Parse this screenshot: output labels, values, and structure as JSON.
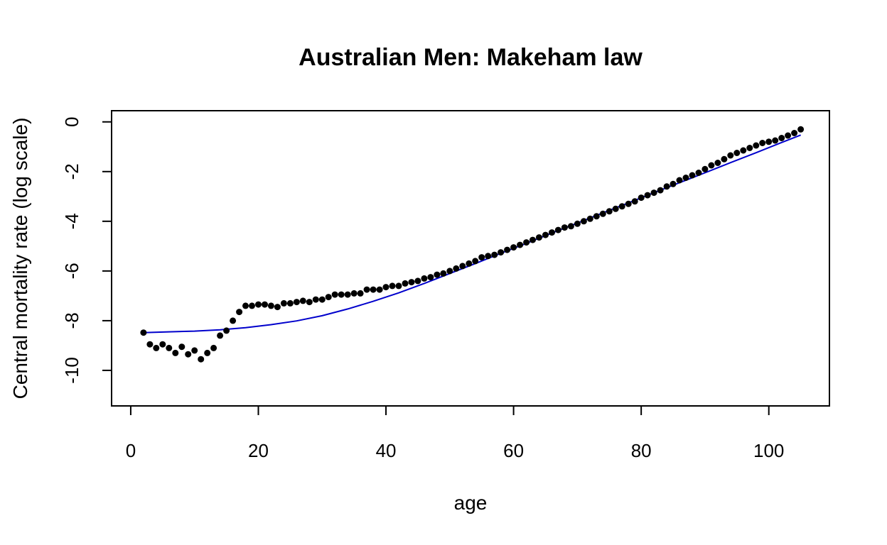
{
  "chart_data": {
    "type": "scatter",
    "title": "Australian Men: Makeham law",
    "xlabel": "age",
    "ylabel": "Central mortality rate (log scale)",
    "xlim": [
      -3.0,
      109.5
    ],
    "ylim": [
      -11.43,
      0.45
    ],
    "xticks": [
      0,
      20,
      40,
      60,
      80,
      100
    ],
    "yticks": [
      0,
      -2,
      -4,
      -6,
      -8,
      -10
    ],
    "grid": false,
    "colors": {
      "points": "#000000",
      "fit_line": "#0000cc"
    },
    "series": [
      {
        "kind": "points",
        "x": [
          2,
          3,
          4,
          5,
          6,
          7,
          8,
          9,
          10,
          11,
          12,
          13,
          14,
          15,
          16,
          17,
          18,
          19,
          20,
          21,
          22,
          23,
          24,
          25,
          26,
          27,
          28,
          29,
          30,
          31,
          32,
          33,
          34,
          35,
          36,
          37,
          38,
          39,
          40,
          41,
          42,
          43,
          44,
          45,
          46,
          47,
          48,
          49,
          50,
          51,
          52,
          53,
          54,
          55,
          56,
          57,
          58,
          59,
          60,
          61,
          62,
          63,
          64,
          65,
          66,
          67,
          68,
          69,
          70,
          71,
          72,
          73,
          74,
          75,
          76,
          77,
          78,
          79,
          80,
          81,
          82,
          83,
          84,
          85,
          86,
          87,
          88,
          89,
          90,
          91,
          92,
          93,
          94,
          95,
          96,
          97,
          98,
          99,
          100,
          101,
          102,
          103,
          104,
          105
        ],
        "y": [
          -8.48,
          -8.95,
          -9.1,
          -8.95,
          -9.1,
          -9.3,
          -9.05,
          -9.35,
          -9.2,
          -9.55,
          -9.3,
          -9.1,
          -8.6,
          -8.4,
          -8.0,
          -7.65,
          -7.4,
          -7.4,
          -7.35,
          -7.35,
          -7.4,
          -7.45,
          -7.3,
          -7.3,
          -7.25,
          -7.2,
          -7.25,
          -7.15,
          -7.15,
          -7.05,
          -6.95,
          -6.95,
          -6.95,
          -6.9,
          -6.9,
          -6.75,
          -6.75,
          -6.75,
          -6.65,
          -6.6,
          -6.6,
          -6.5,
          -6.45,
          -6.4,
          -6.3,
          -6.25,
          -6.15,
          -6.1,
          -6.0,
          -5.9,
          -5.8,
          -5.7,
          -5.6,
          -5.45,
          -5.4,
          -5.35,
          -5.25,
          -5.15,
          -5.05,
          -4.95,
          -4.85,
          -4.75,
          -4.65,
          -4.55,
          -4.45,
          -4.35,
          -4.25,
          -4.2,
          -4.1,
          -4.0,
          -3.9,
          -3.8,
          -3.7,
          -3.6,
          -3.5,
          -3.4,
          -3.3,
          -3.2,
          -3.05,
          -2.95,
          -2.85,
          -2.75,
          -2.6,
          -2.5,
          -2.35,
          -2.25,
          -2.15,
          -2.05,
          -1.9,
          -1.75,
          -1.65,
          -1.5,
          -1.35,
          -1.25,
          -1.15,
          -1.05,
          -0.95,
          -0.85,
          -0.8,
          -0.75,
          -0.65,
          -0.55,
          -0.45,
          -0.3
        ]
      },
      {
        "kind": "line",
        "x": [
          2,
          6,
          10,
          14,
          18,
          22,
          26,
          30,
          34,
          38,
          42,
          46,
          50,
          54,
          58,
          62,
          66,
          70,
          74,
          78,
          82,
          86,
          90,
          94,
          98,
          102,
          105
        ],
        "y": [
          -8.48,
          -8.45,
          -8.42,
          -8.37,
          -8.28,
          -8.16,
          -8.01,
          -7.8,
          -7.53,
          -7.22,
          -6.88,
          -6.5,
          -6.1,
          -5.7,
          -5.29,
          -4.89,
          -4.47,
          -4.07,
          -3.66,
          -3.26,
          -2.85,
          -2.45,
          -2.05,
          -1.64,
          -1.24,
          -0.83,
          -0.53
        ]
      }
    ]
  }
}
